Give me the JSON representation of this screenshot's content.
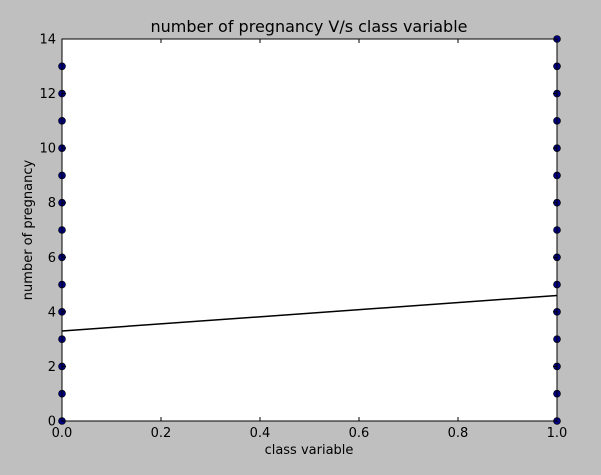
{
  "chart_data": {
    "type": "scatter",
    "title": "number of pregnancy V/s class variable",
    "xlabel": "class variable",
    "ylabel": "number of pregnancy",
    "xlim": [
      0.0,
      1.0
    ],
    "ylim": [
      0,
      14
    ],
    "xticks": [
      "0.0",
      "0.2",
      "0.4",
      "0.6",
      "0.8",
      "1.0"
    ],
    "yticks": [
      "0",
      "2",
      "4",
      "6",
      "8",
      "10",
      "12",
      "14"
    ],
    "grid": false,
    "legend": "none",
    "series": [
      {
        "marker_color": "#00007f",
        "points": [
          {
            "x": 0,
            "y": 0
          },
          {
            "x": 0,
            "y": 1
          },
          {
            "x": 0,
            "y": 2
          },
          {
            "x": 0,
            "y": 3
          },
          {
            "x": 0,
            "y": 4
          },
          {
            "x": 0,
            "y": 5
          },
          {
            "x": 0,
            "y": 6
          },
          {
            "x": 0,
            "y": 7
          },
          {
            "x": 0,
            "y": 8
          },
          {
            "x": 0,
            "y": 9
          },
          {
            "x": 0,
            "y": 10
          },
          {
            "x": 0,
            "y": 11
          },
          {
            "x": 0,
            "y": 12
          },
          {
            "x": 0,
            "y": 13
          },
          {
            "x": 1,
            "y": 0
          },
          {
            "x": 1,
            "y": 1
          },
          {
            "x": 1,
            "y": 2
          },
          {
            "x": 1,
            "y": 3
          },
          {
            "x": 1,
            "y": 4
          },
          {
            "x": 1,
            "y": 5
          },
          {
            "x": 1,
            "y": 6
          },
          {
            "x": 1,
            "y": 7
          },
          {
            "x": 1,
            "y": 8
          },
          {
            "x": 1,
            "y": 9
          },
          {
            "x": 1,
            "y": 10
          },
          {
            "x": 1,
            "y": 11
          },
          {
            "x": 1,
            "y": 12
          },
          {
            "x": 1,
            "y": 13
          },
          {
            "x": 1,
            "y": 14
          }
        ]
      }
    ],
    "regression_line": {
      "color": "#000000",
      "points": [
        {
          "x": 0,
          "y": 3.3
        },
        {
          "x": 1,
          "y": 4.6
        }
      ]
    }
  }
}
